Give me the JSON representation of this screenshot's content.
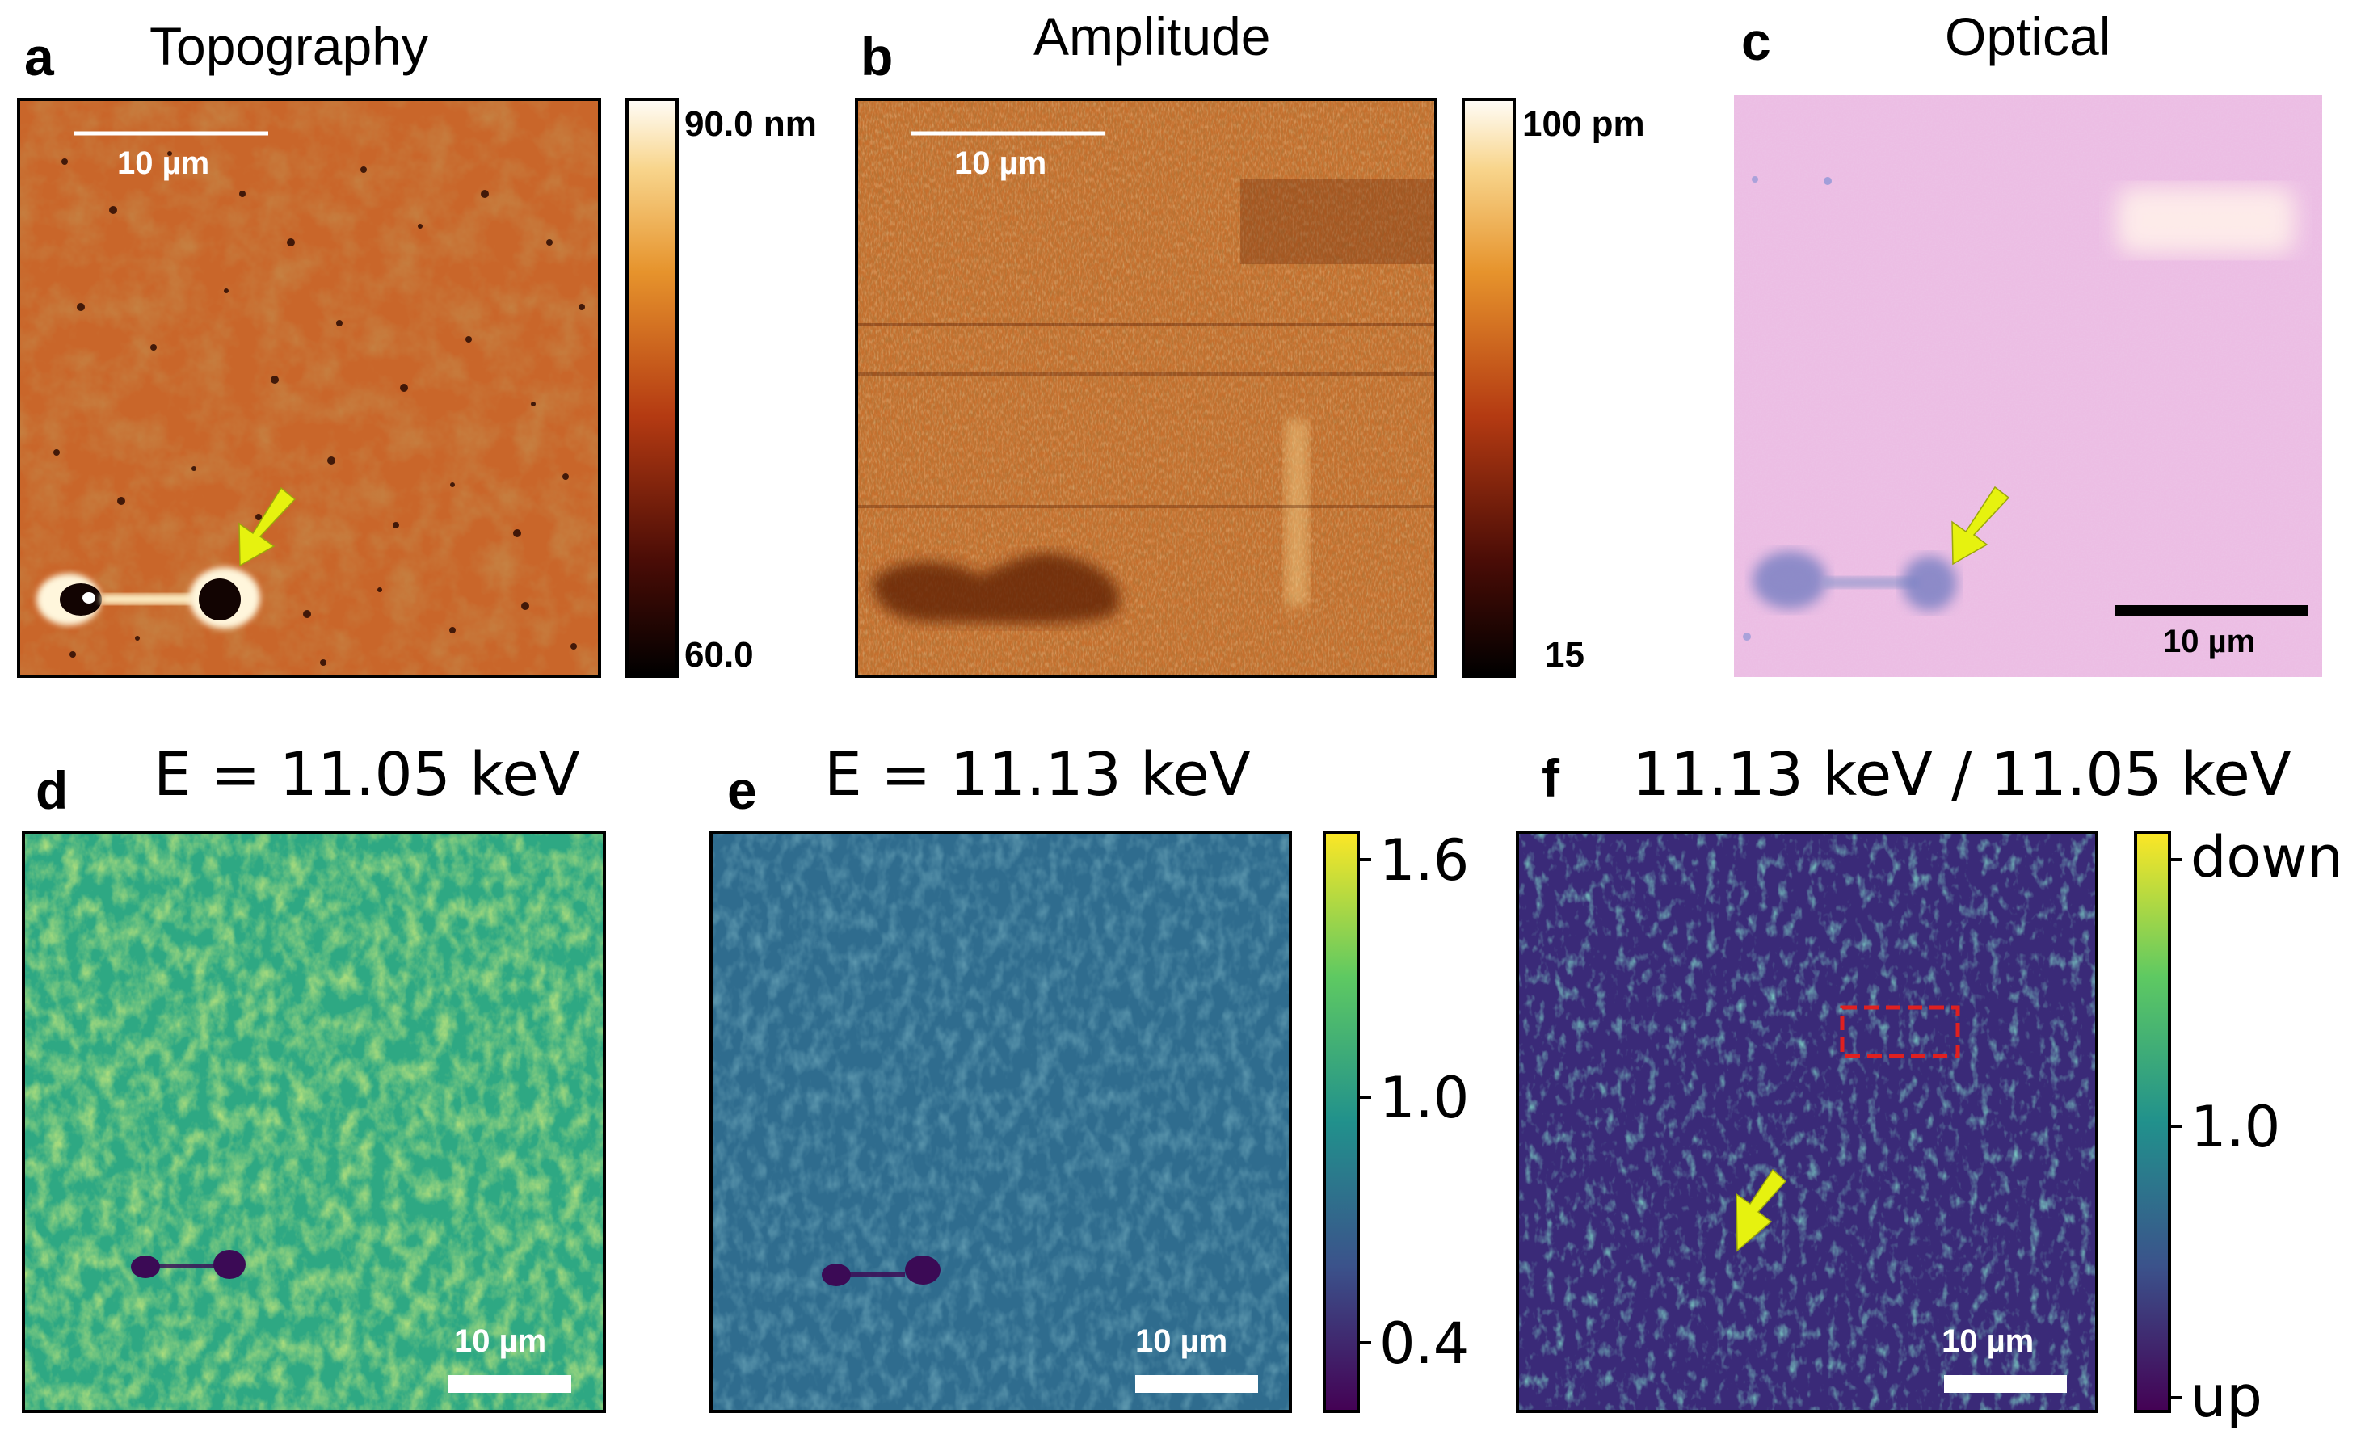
{
  "panels": {
    "a": {
      "letter": "a",
      "title": "Topography",
      "scalebar": "10 µm",
      "cb_max": "90.0 nm",
      "cb_min": "60.0"
    },
    "b": {
      "letter": "b",
      "title": "Amplitude",
      "scalebar": "10 µm",
      "cb_max": "100 pm",
      "cb_min": "15"
    },
    "c": {
      "letter": "c",
      "title": "Optical",
      "scalebar": "10 µm"
    },
    "d": {
      "letter": "d",
      "title": "E = 11.05 keV",
      "scalebar": "10 µm"
    },
    "e": {
      "letter": "e",
      "title": "E = 11.13 keV",
      "scalebar": "10 µm",
      "cb_ticks": [
        "1.6",
        "1.0",
        "0.4"
      ]
    },
    "f": {
      "letter": "f",
      "title": "11.13 keV / 11.05 keV",
      "scalebar": "10 µm",
      "cb_ticks": [
        "down",
        "1.0",
        "up"
      ]
    }
  },
  "colors": {
    "arrow": "#e6f20f",
    "roi_box": "#e02020",
    "optical_background": "#ecbde4"
  }
}
